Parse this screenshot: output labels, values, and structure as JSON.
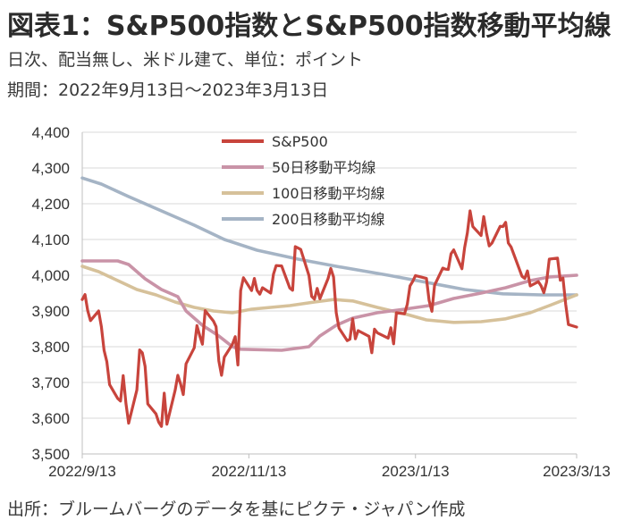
{
  "title": "図表1：S&P500指数とS&P500指数移動平均線",
  "subtitle_1": "日次、配当無し、米ドル建て、単位：ポイント",
  "subtitle_2": "期間：2022年9月13日～2023年3月13日",
  "source": "出所：ブルームバーグのデータを基にピクテ・ジャパン作成",
  "chart_data": {
    "type": "line",
    "title": "",
    "xlabel": "",
    "ylabel": "",
    "ylim": [
      3500,
      4400
    ],
    "y_ticks": [
      3500,
      3600,
      3700,
      3800,
      3900,
      4000,
      4100,
      4200,
      4300,
      4400
    ],
    "y_tick_labels": [
      "3,500",
      "3,600",
      "3,700",
      "3,800",
      "3,900",
      "4,000",
      "4,100",
      "4,200",
      "4,300",
      "4,400"
    ],
    "x_tick_labels": [
      "2022/9/13",
      "2022/11/13",
      "2023/1/13",
      "2023/3/13"
    ],
    "x_tick_dates": [
      "2022-09-13",
      "2022-11-13",
      "2023-01-13",
      "2023-03-13"
    ],
    "xlim": [
      "2022-09-13",
      "2023-03-13"
    ],
    "grid": "horizontal",
    "legend_position": "top",
    "series": [
      {
        "name": "S&P500",
        "color": "#c8443c",
        "points": [
          [
            "2022-09-13",
            3932
          ],
          [
            "2022-09-14",
            3946
          ],
          [
            "2022-09-15",
            3901
          ],
          [
            "2022-09-16",
            3873
          ],
          [
            "2022-09-19",
            3900
          ],
          [
            "2022-09-20",
            3856
          ],
          [
            "2022-09-21",
            3790
          ],
          [
            "2022-09-22",
            3758
          ],
          [
            "2022-09-23",
            3694
          ],
          [
            "2022-09-26",
            3655
          ],
          [
            "2022-09-27",
            3648
          ],
          [
            "2022-09-28",
            3719
          ],
          [
            "2022-09-29",
            3641
          ],
          [
            "2022-09-30",
            3586
          ],
          [
            "2022-10-03",
            3679
          ],
          [
            "2022-10-04",
            3791
          ],
          [
            "2022-10-05",
            3783
          ],
          [
            "2022-10-06",
            3745
          ],
          [
            "2022-10-07",
            3640
          ],
          [
            "2022-10-10",
            3612
          ],
          [
            "2022-10-11",
            3589
          ],
          [
            "2022-10-12",
            3577
          ],
          [
            "2022-10-13",
            3670
          ],
          [
            "2022-10-14",
            3583
          ],
          [
            "2022-10-17",
            3678
          ],
          [
            "2022-10-18",
            3720
          ],
          [
            "2022-10-19",
            3696
          ],
          [
            "2022-10-20",
            3666
          ],
          [
            "2022-10-21",
            3752
          ],
          [
            "2022-10-24",
            3797
          ],
          [
            "2022-10-25",
            3859
          ],
          [
            "2022-10-26",
            3831
          ],
          [
            "2022-10-27",
            3807
          ],
          [
            "2022-10-28",
            3901
          ],
          [
            "2022-10-31",
            3872
          ],
          [
            "2022-11-01",
            3856
          ],
          [
            "2022-11-02",
            3760
          ],
          [
            "2022-11-03",
            3720
          ],
          [
            "2022-11-04",
            3771
          ],
          [
            "2022-11-07",
            3807
          ],
          [
            "2022-11-08",
            3828
          ],
          [
            "2022-11-09",
            3749
          ],
          [
            "2022-11-10",
            3957
          ],
          [
            "2022-11-11",
            3993
          ],
          [
            "2022-11-14",
            3957
          ],
          [
            "2022-11-15",
            3991
          ],
          [
            "2022-11-16",
            3958
          ],
          [
            "2022-11-17",
            3947
          ],
          [
            "2022-11-18",
            3965
          ],
          [
            "2022-11-21",
            3950
          ],
          [
            "2022-11-22",
            4003
          ],
          [
            "2022-11-23",
            4027
          ],
          [
            "2022-11-25",
            4026
          ],
          [
            "2022-11-28",
            3964
          ],
          [
            "2022-11-29",
            3958
          ],
          [
            "2022-11-30",
            4080
          ],
          [
            "2022-12-01",
            4076
          ],
          [
            "2022-12-02",
            4072
          ],
          [
            "2022-12-05",
            3999
          ],
          [
            "2022-12-06",
            3941
          ],
          [
            "2022-12-07",
            3933
          ],
          [
            "2022-12-08",
            3963
          ],
          [
            "2022-12-09",
            3934
          ],
          [
            "2022-12-12",
            3991
          ],
          [
            "2022-12-13",
            4019
          ],
          [
            "2022-12-14",
            3995
          ],
          [
            "2022-12-15",
            3895
          ],
          [
            "2022-12-16",
            3852
          ],
          [
            "2022-12-19",
            3817
          ],
          [
            "2022-12-20",
            3821
          ],
          [
            "2022-12-21",
            3878
          ],
          [
            "2022-12-22",
            3822
          ],
          [
            "2022-12-23",
            3845
          ],
          [
            "2022-12-27",
            3829
          ],
          [
            "2022-12-28",
            3783
          ],
          [
            "2022-12-29",
            3849
          ],
          [
            "2022-12-30",
            3839
          ],
          [
            "2023-01-03",
            3824
          ],
          [
            "2023-01-04",
            3853
          ],
          [
            "2023-01-05",
            3808
          ],
          [
            "2023-01-06",
            3895
          ],
          [
            "2023-01-09",
            3892
          ],
          [
            "2023-01-10",
            3919
          ],
          [
            "2023-01-11",
            3970
          ],
          [
            "2023-01-12",
            3983
          ],
          [
            "2023-01-13",
            3999
          ],
          [
            "2023-01-17",
            3991
          ],
          [
            "2023-01-18",
            3929
          ],
          [
            "2023-01-19",
            3899
          ],
          [
            "2023-01-20",
            3972
          ],
          [
            "2023-01-23",
            4020
          ],
          [
            "2023-01-24",
            4017
          ],
          [
            "2023-01-25",
            4016
          ],
          [
            "2023-01-26",
            4060
          ],
          [
            "2023-01-27",
            4071
          ],
          [
            "2023-01-30",
            4018
          ],
          [
            "2023-01-31",
            4077
          ],
          [
            "2023-02-01",
            4119
          ],
          [
            "2023-02-02",
            4180
          ],
          [
            "2023-02-03",
            4136
          ],
          [
            "2023-02-06",
            4111
          ],
          [
            "2023-02-07",
            4164
          ],
          [
            "2023-02-08",
            4118
          ],
          [
            "2023-02-09",
            4082
          ],
          [
            "2023-02-10",
            4090
          ],
          [
            "2023-02-13",
            4137
          ],
          [
            "2023-02-14",
            4136
          ],
          [
            "2023-02-15",
            4148
          ],
          [
            "2023-02-16",
            4090
          ],
          [
            "2023-02-17",
            4079
          ],
          [
            "2023-02-21",
            3997
          ],
          [
            "2023-02-22",
            3991
          ],
          [
            "2023-02-23",
            4012
          ],
          [
            "2023-02-24",
            3970
          ],
          [
            "2023-02-27",
            3982
          ],
          [
            "2023-02-28",
            3970
          ],
          [
            "2023-03-01",
            3951
          ],
          [
            "2023-03-02",
            3981
          ],
          [
            "2023-03-03",
            4045
          ],
          [
            "2023-03-06",
            4048
          ],
          [
            "2023-03-07",
            3986
          ],
          [
            "2023-03-08",
            3992
          ],
          [
            "2023-03-09",
            3918
          ],
          [
            "2023-03-10",
            3862
          ],
          [
            "2023-03-13",
            3855
          ]
        ]
      },
      {
        "name": "50日移動平均線",
        "color": "#c993a7",
        "points": [
          [
            "2022-09-13",
            4040
          ],
          [
            "2022-09-26",
            4040
          ],
          [
            "2022-09-30",
            4030
          ],
          [
            "2022-10-06",
            3990
          ],
          [
            "2022-10-12",
            3960
          ],
          [
            "2022-10-18",
            3940
          ],
          [
            "2022-10-21",
            3900
          ],
          [
            "2022-10-27",
            3860
          ],
          [
            "2022-11-02",
            3830
          ],
          [
            "2022-11-07",
            3800
          ],
          [
            "2022-11-10",
            3793
          ],
          [
            "2022-11-25",
            3790
          ],
          [
            "2022-12-05",
            3800
          ],
          [
            "2022-12-09",
            3830
          ],
          [
            "2022-12-15",
            3860
          ],
          [
            "2022-12-21",
            3880
          ],
          [
            "2022-12-30",
            3895
          ],
          [
            "2023-01-09",
            3905
          ],
          [
            "2023-01-18",
            3915
          ],
          [
            "2023-01-27",
            3935
          ],
          [
            "2023-02-06",
            3950
          ],
          [
            "2023-02-15",
            3965
          ],
          [
            "2023-02-24",
            3985
          ],
          [
            "2023-03-03",
            3995
          ],
          [
            "2023-03-13",
            4000
          ]
        ]
      },
      {
        "name": "100日移動平均線",
        "color": "#d6c19a",
        "points": [
          [
            "2022-09-13",
            4025
          ],
          [
            "2022-09-19",
            4010
          ],
          [
            "2022-09-26",
            3985
          ],
          [
            "2022-10-03",
            3960
          ],
          [
            "2022-10-10",
            3945
          ],
          [
            "2022-10-17",
            3925
          ],
          [
            "2022-10-24",
            3910
          ],
          [
            "2022-10-31",
            3900
          ],
          [
            "2022-11-07",
            3895
          ],
          [
            "2022-11-14",
            3905
          ],
          [
            "2022-11-28",
            3915
          ],
          [
            "2022-12-07",
            3925
          ],
          [
            "2022-12-14",
            3932
          ],
          [
            "2022-12-21",
            3928
          ],
          [
            "2022-12-30",
            3910
          ],
          [
            "2023-01-10",
            3890
          ],
          [
            "2023-01-17",
            3875
          ],
          [
            "2023-01-27",
            3868
          ],
          [
            "2023-02-06",
            3870
          ],
          [
            "2023-02-15",
            3878
          ],
          [
            "2023-02-24",
            3895
          ],
          [
            "2023-03-03",
            3915
          ],
          [
            "2023-03-13",
            3945
          ]
        ]
      },
      {
        "name": "200日移動平均線",
        "color": "#a5b4c5",
        "points": [
          [
            "2022-09-13",
            4272
          ],
          [
            "2022-09-20",
            4255
          ],
          [
            "2022-09-30",
            4220
          ],
          [
            "2022-10-12",
            4180
          ],
          [
            "2022-10-24",
            4140
          ],
          [
            "2022-11-04",
            4100
          ],
          [
            "2022-11-16",
            4070
          ],
          [
            "2022-12-01",
            4045
          ],
          [
            "2022-12-15",
            4025
          ],
          [
            "2023-01-03",
            4000
          ],
          [
            "2023-01-17",
            3980
          ],
          [
            "2023-01-31",
            3960
          ],
          [
            "2023-02-14",
            3948
          ],
          [
            "2023-02-28",
            3945
          ],
          [
            "2023-03-13",
            3945
          ]
        ]
      }
    ]
  }
}
